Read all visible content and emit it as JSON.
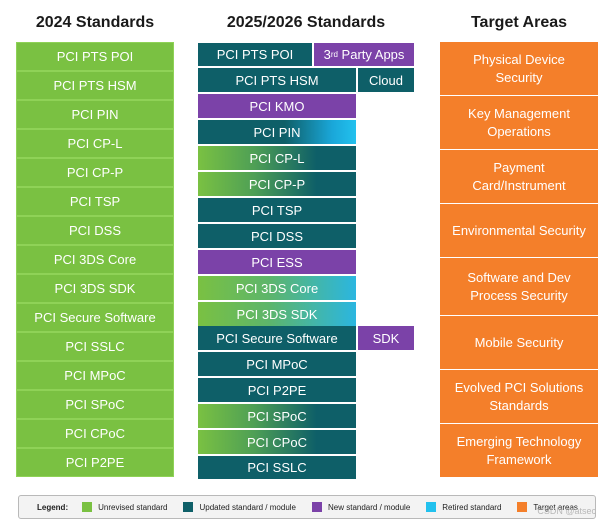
{
  "headers": {
    "col2024": "2024 Standards",
    "col2025": "2025/2026 Standards",
    "target": "Target Areas"
  },
  "standards_2024": [
    "PCI PTS POI",
    "PCI PTS HSM",
    "PCI PIN",
    "PCI CP-L",
    "PCI CP-P",
    "PCI TSP",
    "PCI DSS",
    "PCI 3DS Core",
    "PCI 3DS SDK",
    "PCI Secure Software",
    "PCI SSLC",
    "PCI MPoC",
    "PCI SPoC",
    "PCI CPoC",
    "PCI P2PE"
  ],
  "standards_2025": [
    "PCI PTS POI",
    "PCI PTS HSM",
    "PCI KMO",
    "PCI PIN",
    "PCI CP-L",
    "PCI CP-P",
    "PCI TSP",
    "PCI DSS",
    "PCI ESS",
    "PCI 3DS Core",
    "PCI 3DS SDK",
    "PCI Secure Software",
    "PCI MPoC",
    "PCI P2PE",
    "PCI SPoC",
    "PCI CPoC",
    "PCI SSLC"
  ],
  "modules": {
    "third_party_ordinal": "3",
    "third_party_suffix": "rd",
    "third_party_rest": " Party Apps",
    "cloud": "Cloud",
    "sdk": "SDK"
  },
  "target_areas": [
    "Physical Device Security",
    "Key Management Operations",
    "Payment Card/Instrument",
    "Environmental Security",
    "Software and Dev Process Security",
    "Mobile Security",
    "Evolved PCI Solutions Standards",
    "Emerging Technology Framework"
  ],
  "legend": {
    "title": "Legend:",
    "items": [
      {
        "label": "Unrevised standard",
        "color": "#7ac142"
      },
      {
        "label": "Updated standard / module",
        "color": "#0e5f68"
      },
      {
        "label": "New standard / module",
        "color": "#7b42a8"
      },
      {
        "label": "Retired standard",
        "color": "#22c1ee"
      },
      {
        "label": "Target areas",
        "color": "#f47f2a"
      }
    ]
  },
  "watermark": "CSDN @atsec"
}
